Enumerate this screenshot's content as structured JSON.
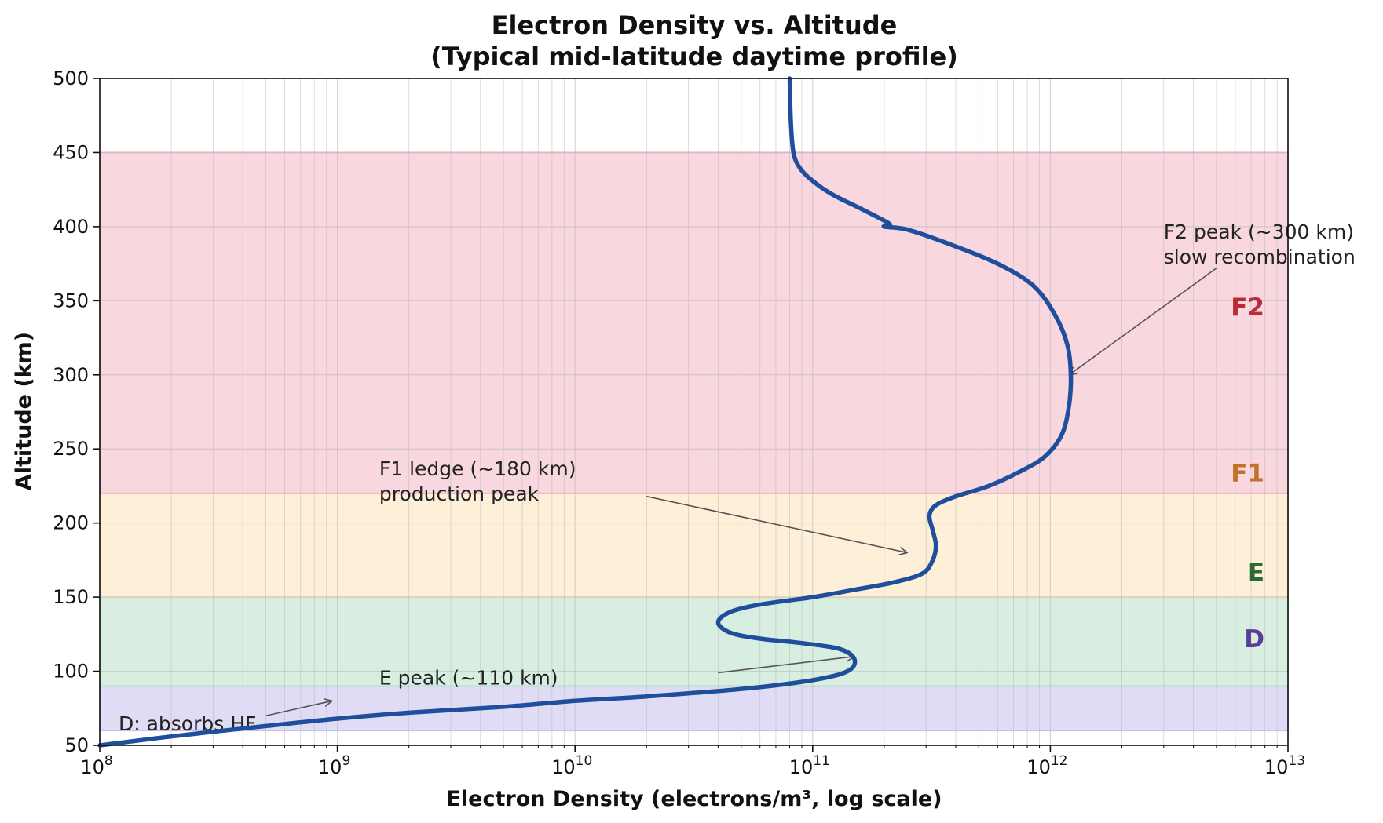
{
  "chart_data": {
    "type": "line",
    "title": "Electron Density vs. Altitude",
    "subtitle": "(Typical mid-latitude daytime profile)",
    "xlabel": "Electron Density (electrons/m³, log scale)",
    "ylabel": "Altitude (km)",
    "xscale": "log",
    "xlim": [
      100000000,
      10000000000000
    ],
    "ylim": [
      50,
      500
    ],
    "x_tick_exponents": [
      8,
      9,
      10,
      11,
      12,
      13
    ],
    "x_tick_base": "10",
    "y_ticks": [
      50,
      100,
      150,
      200,
      250,
      300,
      350,
      400,
      450,
      500
    ],
    "y_tick_labels": [
      "50",
      "100",
      "150",
      "200",
      "250",
      "300",
      "350",
      "400",
      "450",
      "500"
    ],
    "grid": true,
    "line_color": "#1f4e9c",
    "series": [
      {
        "x": [
          100000000,
          200000000,
          500000000,
          1000000000,
          2000000000,
          5000000000,
          10000000000,
          20000000000,
          50000000000,
          100000000000,
          140000000000,
          150000000000,
          130000000000,
          90000000000,
          60000000000,
          45000000000,
          40000000000,
          45000000000,
          60000000000,
          100000000000,
          150000000000,
          220000000000,
          290000000000,
          320000000000,
          330000000000,
          320000000000,
          310000000000,
          330000000000,
          400000000000,
          550000000000,
          750000000000,
          950000000000,
          1120000000000,
          1200000000000,
          1220000000000,
          1180000000000,
          1050000000000,
          850000000000,
          600000000000,
          380000000000,
          250000000000,
          200000000000,
          210000000000,
          160000000000,
          120000000000,
          98000000000,
          88000000000,
          83000000000,
          81000000000,
          80000000000
        ],
        "y": [
          50,
          56,
          63,
          68,
          72,
          76,
          80,
          83,
          88,
          94,
          100,
          108,
          115,
          119,
          122,
          126,
          133,
          140,
          145,
          150,
          155,
          160,
          166,
          175,
          185,
          195,
          205,
          212,
          218,
          225,
          235,
          245,
          260,
          280,
          300,
          320,
          340,
          360,
          375,
          388,
          398,
          400,
          402,
          412,
          422,
          432,
          440,
          450,
          470,
          500
        ]
      }
    ],
    "layers": [
      {
        "name": "D",
        "y_range": [
          60,
          90
        ],
        "fill": "#c9c0ec",
        "label_color": "#5b3d99",
        "label_y": 122
      },
      {
        "name": "E",
        "y_range": [
          90,
          150
        ],
        "fill": "#b7e0c8",
        "label_color": "#2e6b34",
        "label_y": 167
      },
      {
        "name": "F1",
        "y_range": [
          150,
          220
        ],
        "fill": "#fde2b8",
        "label_color": "#c27127",
        "label_y": 234
      },
      {
        "name": "F2",
        "y_range": [
          220,
          450
        ],
        "fill": "#f2b7c4",
        "label_color": "#b92c36",
        "label_y": 346
      }
    ],
    "annotations": [
      {
        "lines": [
          "F2 peak (~300 km)",
          "slow recombination"
        ],
        "text_x": 3000000000000,
        "text_y": 392,
        "arrow_to": [
          1200000000000,
          300
        ],
        "arrow_from": [
          5000000000000,
          372
        ]
      },
      {
        "lines": [
          "F1 ledge (~180 km)",
          "production peak"
        ],
        "text_x": 1500000000,
        "text_y": 232,
        "arrow_to": [
          250000000000,
          180
        ],
        "arrow_from": [
          20000000000,
          218
        ]
      },
      {
        "lines": [
          "E peak (~110 km)"
        ],
        "text_x": 1500000000,
        "text_y": 91,
        "arrow_to": [
          150000000000,
          110
        ],
        "arrow_from": [
          40000000000,
          99
        ]
      },
      {
        "lines": [
          "D: absorbs HF"
        ],
        "text_x": 120000000,
        "text_y": 60,
        "arrow_to": [
          950000000,
          80
        ],
        "arrow_from": [
          500000000,
          70
        ]
      }
    ]
  }
}
